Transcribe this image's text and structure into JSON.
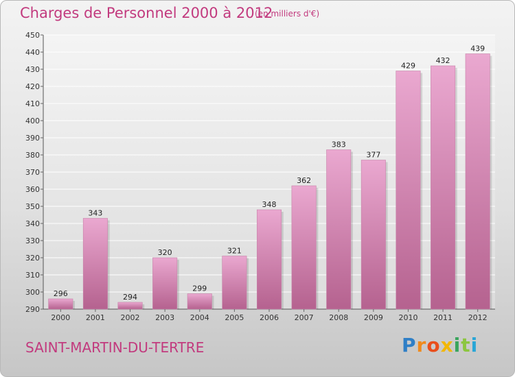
{
  "title": "Charges de Personnel 2000 à 2012",
  "subtitle": "(en milliers d'€)",
  "commune": "SAINT-MARTIN-DU-TERTRE",
  "logo": {
    "letters": [
      "P",
      "r",
      "o",
      "x",
      "i",
      "t",
      "i"
    ],
    "colors": [
      "#2f7fc6",
      "#f08a1c",
      "#e94e1b",
      "#f2b705",
      "#3aa55d",
      "#8cc63f",
      "#29a6d6"
    ]
  },
  "chart_data": {
    "type": "bar",
    "categories": [
      "2000",
      "2001",
      "2002",
      "2003",
      "2004",
      "2005",
      "2006",
      "2007",
      "2008",
      "2009",
      "2010",
      "2011",
      "2012"
    ],
    "values": [
      296,
      343,
      294,
      320,
      299,
      321,
      348,
      362,
      383,
      377,
      429,
      432,
      439
    ],
    "data_labels": [
      "296",
      "343",
      "294",
      "320",
      "299",
      "321",
      "348",
      "362",
      "383",
      "377",
      "429",
      "432",
      "439"
    ],
    "ylim": [
      290,
      450
    ],
    "yticks": [
      "290",
      "300",
      "310",
      "320",
      "330",
      "340",
      "350",
      "360",
      "370",
      "380",
      "390",
      "400",
      "410",
      "420",
      "430",
      "440",
      "450"
    ],
    "grid": true,
    "bar_color": "#c9689e",
    "bar_color_light": "#e8a9cf"
  }
}
